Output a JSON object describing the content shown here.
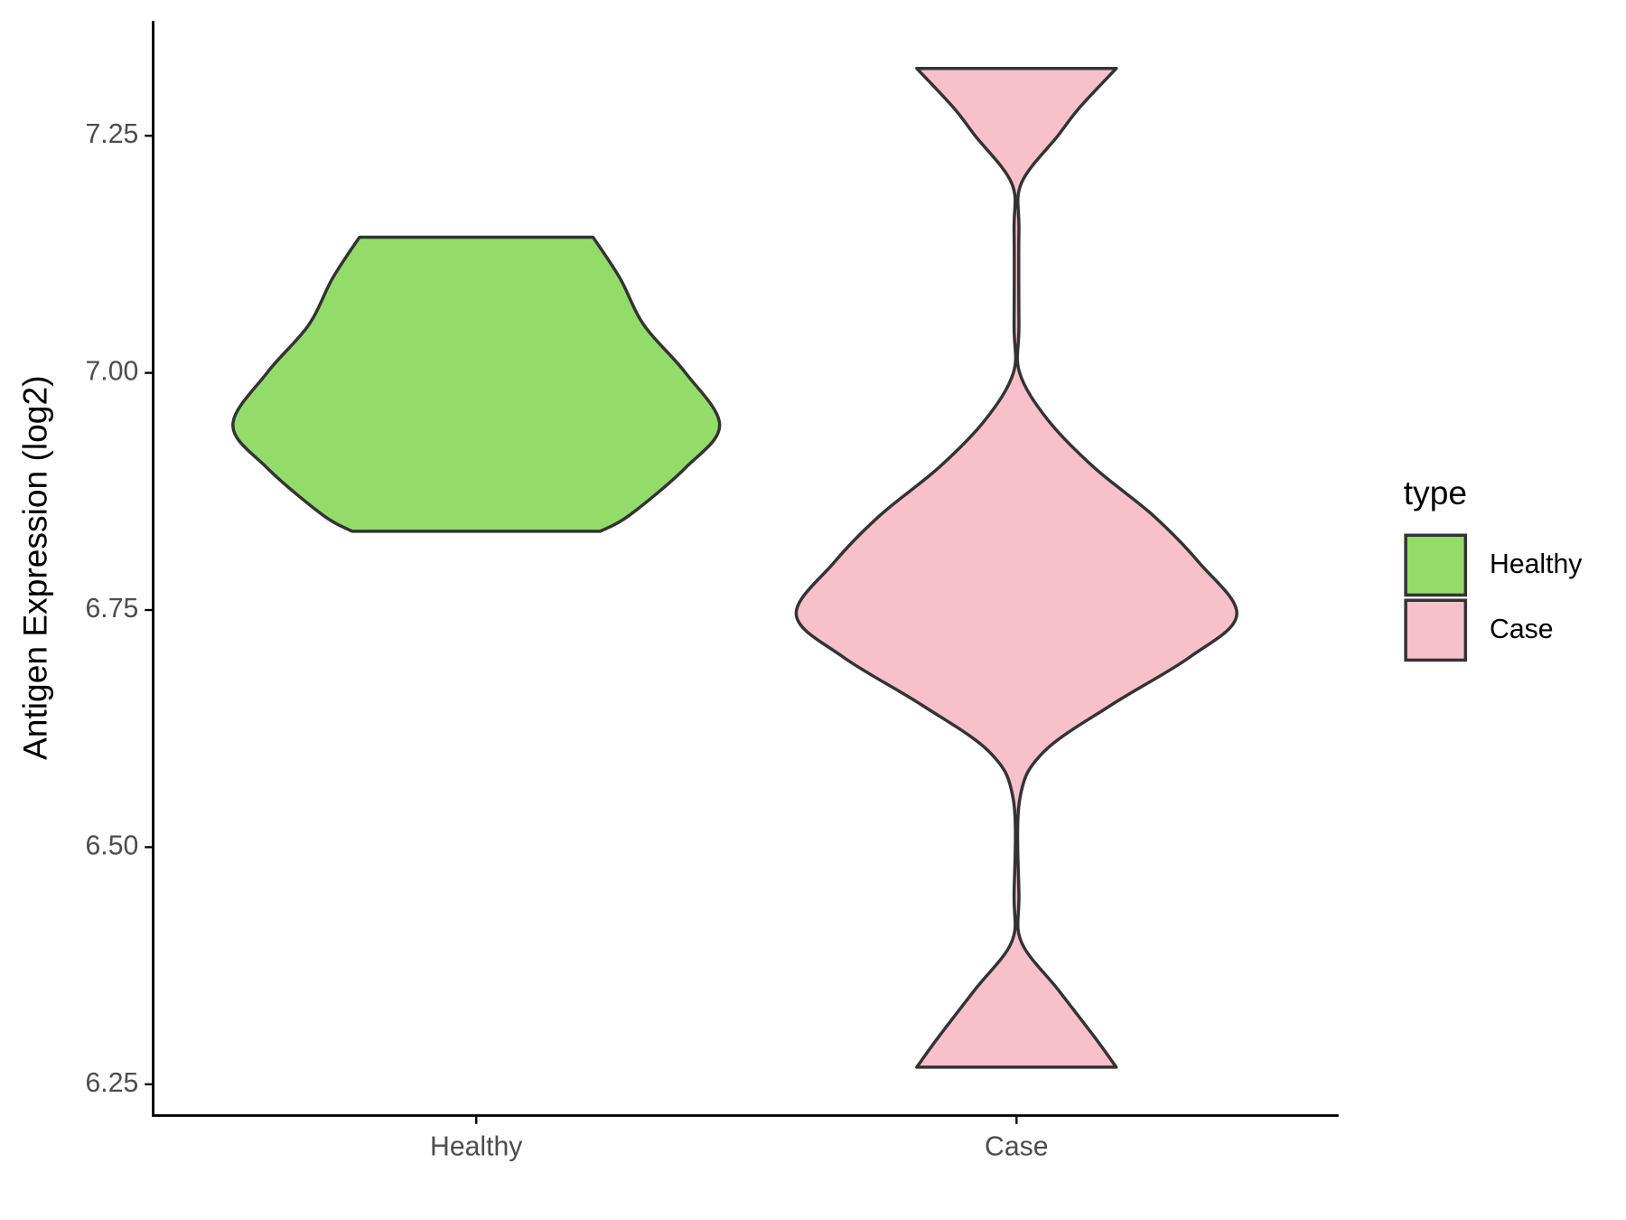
{
  "chart_data": {
    "type": "violin",
    "ylabel": "Antigen Expression (log2)",
    "legend_title": "type",
    "categories": [
      "Healthy",
      "Case"
    ],
    "series": [
      {
        "name": "Healthy",
        "color": "#93dc6a",
        "y": [
          6.833,
          6.85,
          6.9,
          6.945,
          7.0,
          7.05,
          7.1,
          7.143
        ],
        "density": [
          0.51,
          0.63,
          0.86,
          1.0,
          0.86,
          0.69,
          0.59,
          0.48
        ]
      },
      {
        "name": "Case",
        "color": "#f7c0cb",
        "y": [
          6.268,
          6.3,
          6.35,
          6.4,
          6.45,
          6.55,
          6.6,
          6.65,
          6.7,
          6.745,
          6.8,
          6.85,
          6.9,
          6.95,
          7.0,
          7.05,
          7.15,
          7.2,
          7.25,
          7.28,
          7.321
        ],
        "density": [
          0.41,
          0.32,
          0.17,
          0.02,
          0.01,
          0.013,
          0.11,
          0.39,
          0.71,
          0.905,
          0.75,
          0.56,
          0.32,
          0.13,
          0.013,
          0.01,
          0.01,
          0.02,
          0.17,
          0.26,
          0.41
        ]
      }
    ],
    "ylim": [
      6.217,
      7.371
    ],
    "yticks": [
      6.25,
      {
        "value": 6.5,
        "label": "6.50"
      },
      6.75,
      {
        "value": 7,
        "label": "7.00"
      },
      7.25
    ]
  }
}
